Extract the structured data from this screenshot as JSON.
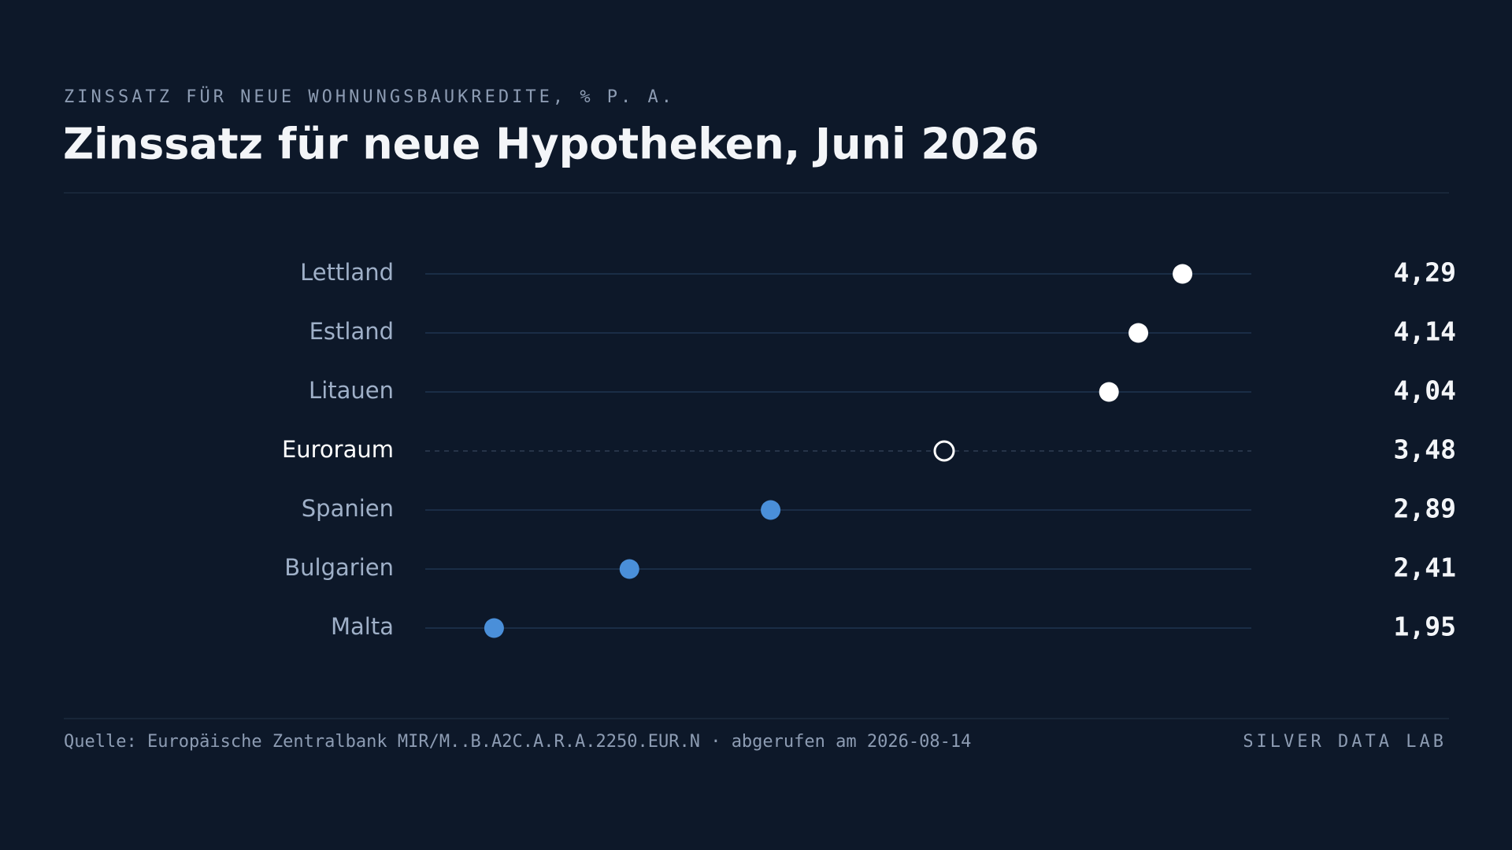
{
  "chart_data": {
    "type": "dot",
    "subtitle": "ZINSSATZ FÜR NEUE WOHNUNGSBAUKREDITE, % P. A.",
    "title": "Zinssatz für neue Hypotheken, Juni 2026",
    "categories": [
      "Lettland",
      "Estland",
      "Litauen",
      "Euroraum",
      "Spanien",
      "Bulgarien",
      "Malta"
    ],
    "values": [
      4.29,
      4.14,
      4.04,
      3.48,
      2.89,
      2.41,
      1.95
    ],
    "value_labels": [
      "4,29",
      "4,14",
      "4,04",
      "3,48",
      "2,89",
      "2,41",
      "1,95"
    ],
    "colors": [
      "#ffffff",
      "#ffffff",
      "#ffffff",
      "#ffffff",
      "#4a8fd9",
      "#4a8fd9",
      "#4a8fd9"
    ],
    "marker_styles": [
      "filled",
      "filled",
      "filled",
      "hollow",
      "filled",
      "filled",
      "filled"
    ],
    "xlim": [
      1.716,
      4.524
    ],
    "source": "Quelle: Europäische Zentralbank MIR/M..B.A2C.A.R.A.2250.EUR.N · abgerufen am 2026-08-14",
    "brand": "SILVER DATA LAB"
  }
}
